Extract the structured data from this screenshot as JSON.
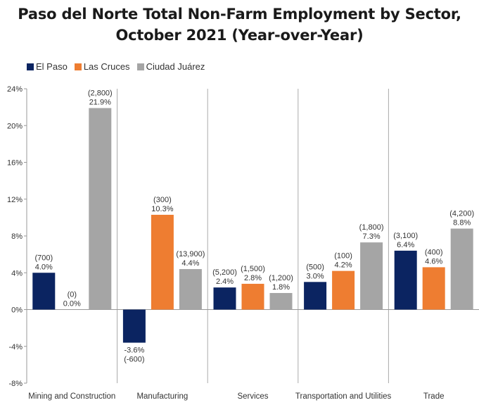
{
  "title_line1": "Paso del Norte Total Non-Farm Employment by Sector,",
  "title_line2": "October 2021 (Year-over-Year)",
  "chart_data": {
    "type": "bar",
    "categories": [
      "Mining and Construction",
      "Manufacturing",
      "Services",
      "Transportation and Utilities",
      "Trade"
    ],
    "series": [
      {
        "name": "El Paso",
        "color": "#0b2461",
        "values": [
          4.0,
          -3.6,
          2.4,
          3.0,
          6.4
        ],
        "pct_labels": [
          "4.0%",
          "-3.6%",
          "2.4%",
          "3.0%",
          "6.4%"
        ],
        "count_labels": [
          "(700)",
          "(-600)",
          "(5,200)",
          "(500)",
          "(3,100)"
        ]
      },
      {
        "name": "Las Cruces",
        "color": "#ee7d31",
        "values": [
          0.0,
          10.3,
          2.8,
          4.2,
          4.6
        ],
        "pct_labels": [
          "0.0%",
          "10.3%",
          "2.8%",
          "4.2%",
          "4.6%"
        ],
        "count_labels": [
          "(0)",
          "(300)",
          "(1,500)",
          "(100)",
          "(400)"
        ]
      },
      {
        "name": "Ciudad Juárez",
        "color": "#a5a5a5",
        "values": [
          21.9,
          4.4,
          1.8,
          7.3,
          8.8
        ],
        "pct_labels": [
          "21.9%",
          "4.4%",
          "1.8%",
          "7.3%",
          "8.8%"
        ],
        "count_labels": [
          "(2,800)",
          "(13,900)",
          "(1,200)",
          "(1,800)",
          "(4,200)"
        ]
      }
    ],
    "yticks": [
      24,
      20,
      16,
      12,
      8,
      4,
      0,
      -4,
      -8
    ],
    "ytick_labels": [
      "24%",
      "20%",
      "16%",
      "12%",
      "8%",
      "4%",
      "0%",
      "-4%",
      "-8%"
    ],
    "ylim": [
      -8,
      24
    ],
    "legend_position": "top-left",
    "grid": false,
    "category_separators": true
  }
}
